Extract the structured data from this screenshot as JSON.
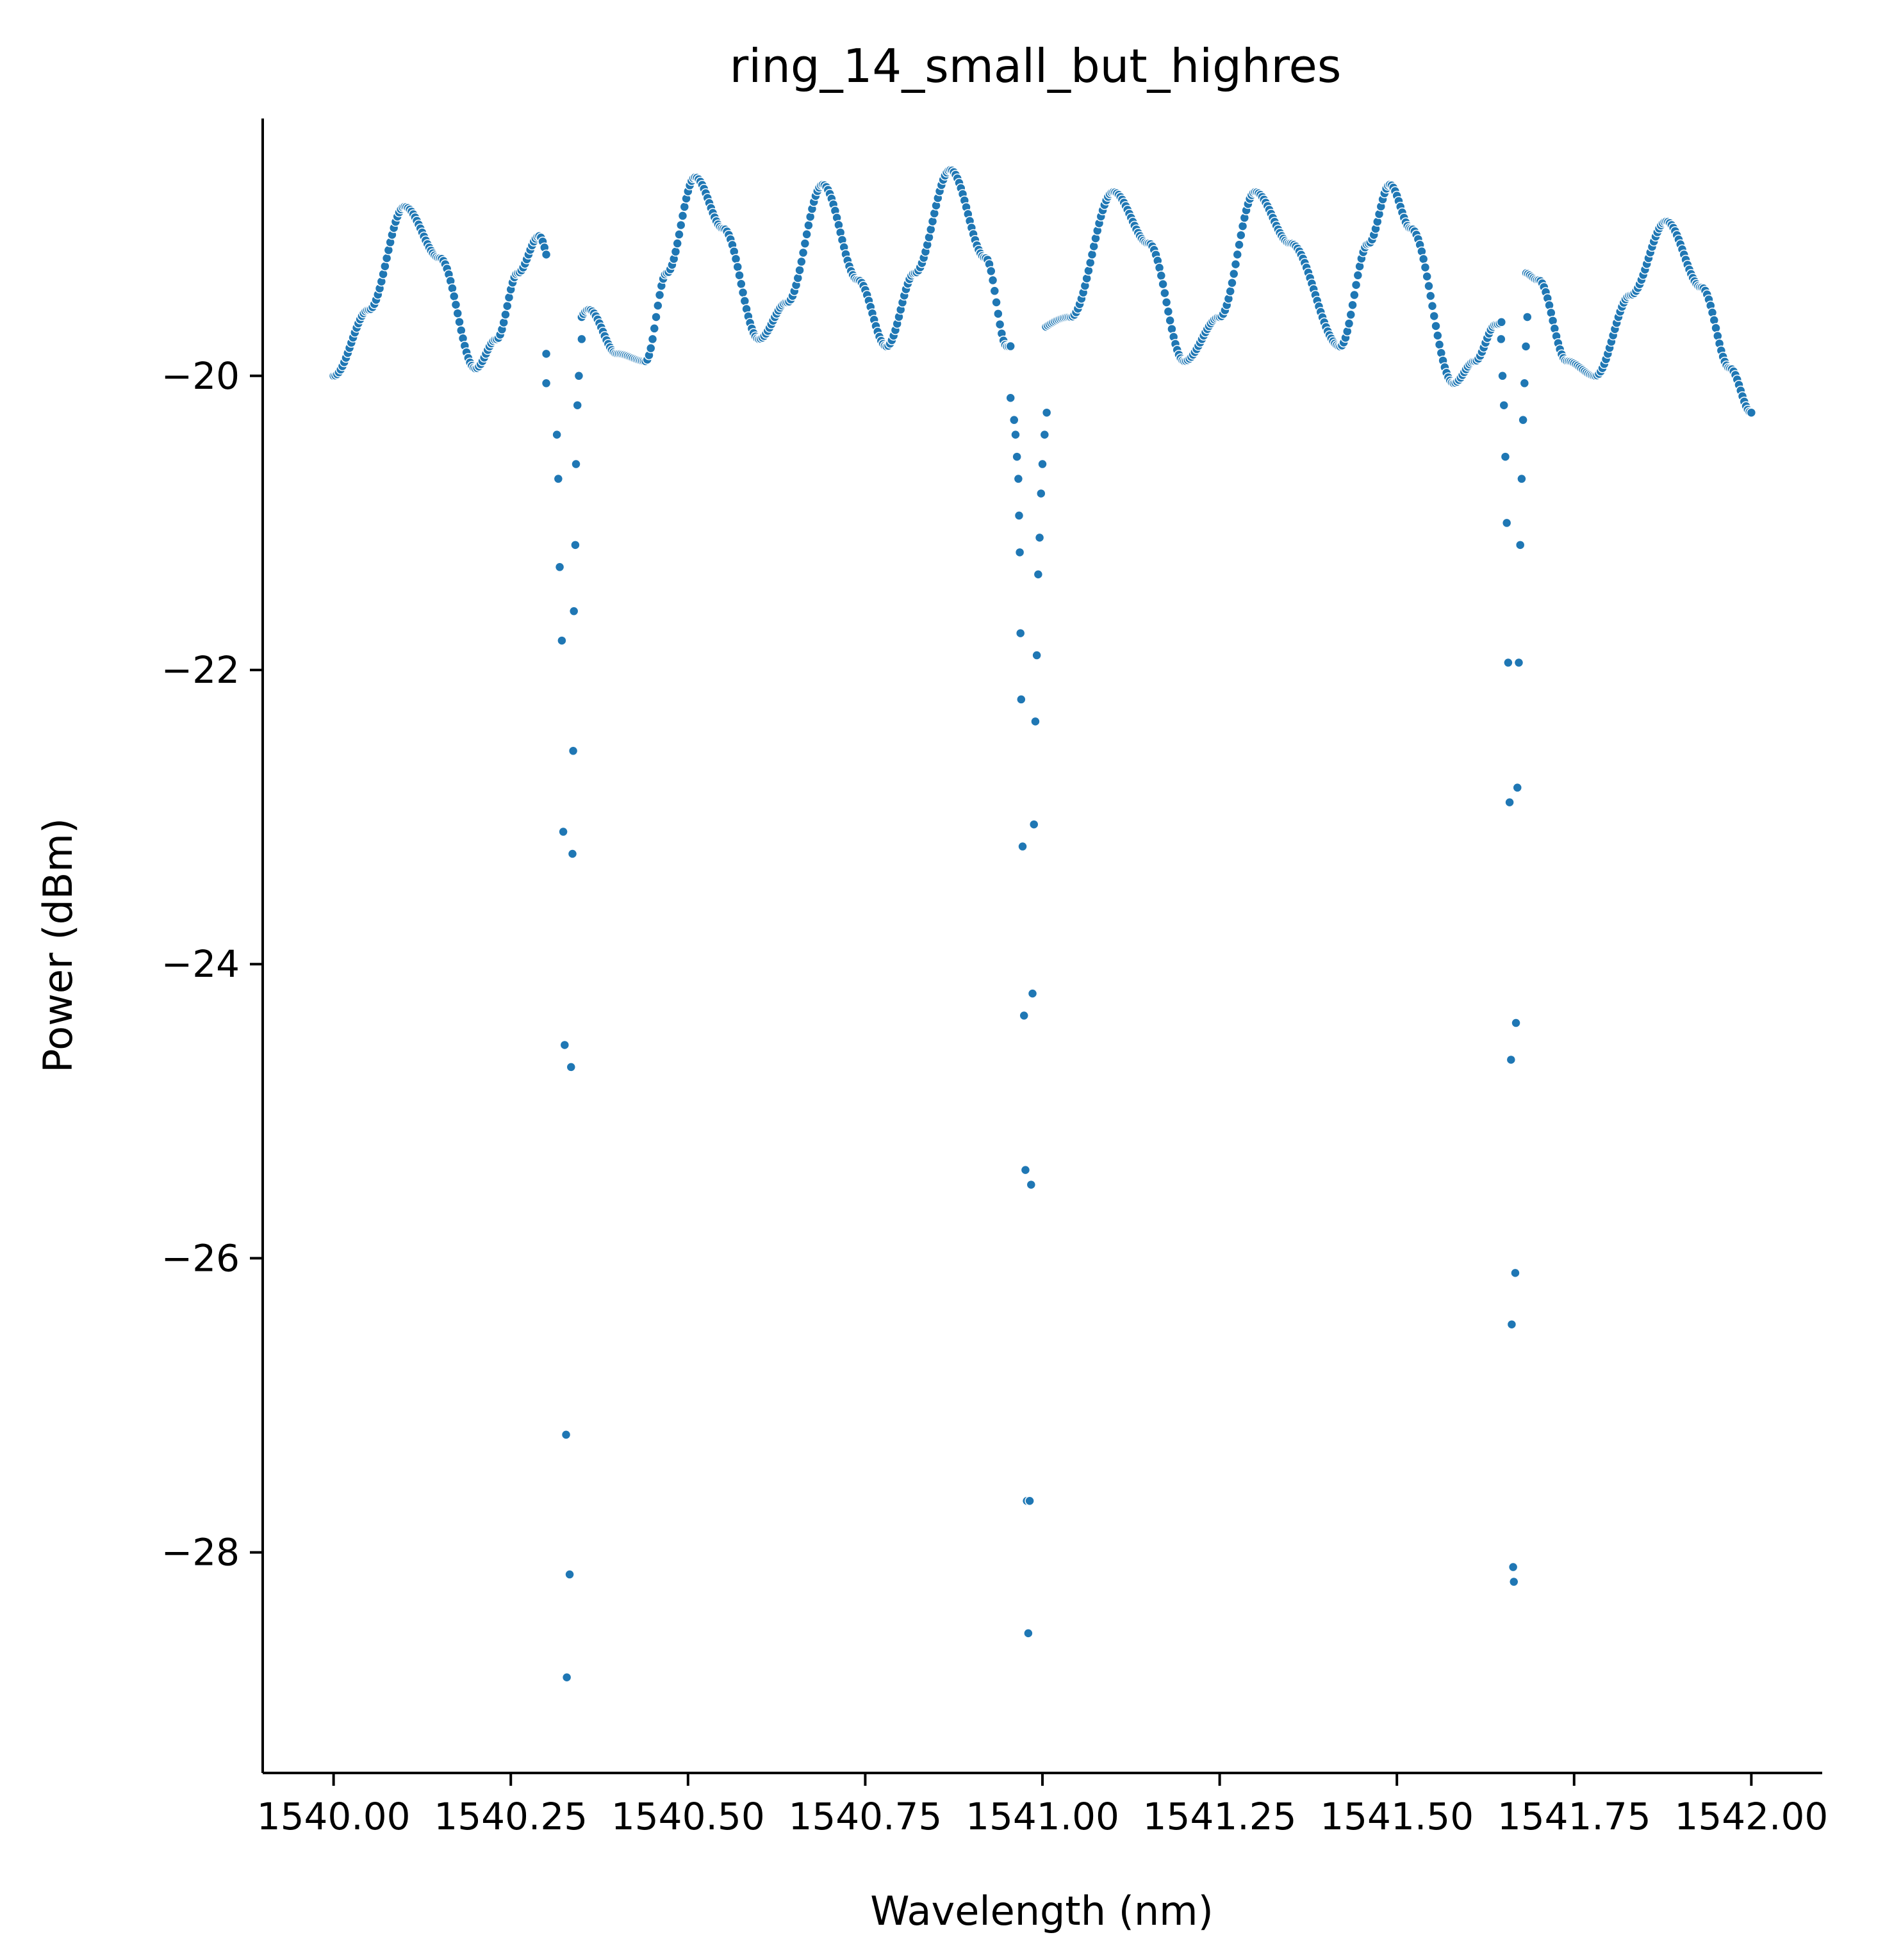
{
  "chart_data": {
    "type": "scatter",
    "title": "ring_14_small_but_highres",
    "xlabel": "Wavelength (nm)",
    "ylabel": "Power (dBm)",
    "xlim": [
      1539.9,
      1542.1
    ],
    "ylim": [
      -29.5,
      -18.25
    ],
    "x_ticks": [
      1540.0,
      1540.25,
      1540.5,
      1540.75,
      1541.0,
      1541.25,
      1541.5,
      1541.75,
      1542.0
    ],
    "x_tick_labels": [
      "1540.00",
      "1540.25",
      "1540.50",
      "1540.75",
      "1541.00",
      "1541.25",
      "1541.50",
      "1541.75",
      "1542.00"
    ],
    "y_ticks": [
      -28,
      -26,
      -24,
      -22,
      -20
    ],
    "y_tick_labels": [
      "−28",
      "−26",
      "−24",
      "−22",
      "−20"
    ],
    "grid": false,
    "legend": "none",
    "marker_color": "#1f77b4",
    "marker_edge_color": "#ffffff",
    "series": [
      {
        "baseline": {
          "x_range": [
            1540.0,
            1542.0
          ],
          "anchors": [
            [
              1540.0,
              -20.0
            ],
            [
              1540.05,
              -19.55
            ],
            [
              1540.1,
              -18.85
            ],
            [
              1540.15,
              -19.2
            ],
            [
              1540.2,
              -19.95
            ],
            [
              1540.23,
              -19.75
            ],
            [
              1540.26,
              -19.3
            ],
            [
              1540.29,
              -19.05
            ],
            [
              1540.31,
              -19.3
            ],
            [
              1540.33,
              -19.75
            ],
            [
              1540.36,
              -19.55
            ],
            [
              1540.4,
              -19.85
            ],
            [
              1540.44,
              -19.9
            ],
            [
              1540.47,
              -19.3
            ],
            [
              1540.51,
              -18.65
            ],
            [
              1540.55,
              -19.0
            ],
            [
              1540.6,
              -19.75
            ],
            [
              1540.64,
              -19.5
            ],
            [
              1540.69,
              -18.7
            ],
            [
              1540.74,
              -19.35
            ],
            [
              1540.78,
              -19.8
            ],
            [
              1540.82,
              -19.3
            ],
            [
              1540.87,
              -18.6
            ],
            [
              1540.92,
              -19.2
            ],
            [
              1540.95,
              -19.8
            ],
            [
              1541.04,
              -19.6
            ],
            [
              1541.1,
              -18.75
            ],
            [
              1541.15,
              -19.1
            ],
            [
              1541.2,
              -19.9
            ],
            [
              1541.25,
              -19.6
            ],
            [
              1541.3,
              -18.75
            ],
            [
              1541.35,
              -19.1
            ],
            [
              1541.42,
              -19.8
            ],
            [
              1541.46,
              -19.1
            ],
            [
              1541.49,
              -18.7
            ],
            [
              1541.52,
              -19.0
            ],
            [
              1541.58,
              -20.05
            ],
            [
              1541.61,
              -19.9
            ],
            [
              1541.64,
              -19.65
            ],
            [
              1541.66,
              -19.6
            ],
            [
              1541.68,
              -19.3
            ],
            [
              1541.7,
              -19.35
            ],
            [
              1541.74,
              -19.9
            ],
            [
              1541.78,
              -20.0
            ],
            [
              1541.83,
              -19.45
            ],
            [
              1541.88,
              -18.95
            ],
            [
              1541.93,
              -19.4
            ],
            [
              1541.97,
              -19.95
            ],
            [
              1542.0,
              -20.25
            ]
          ],
          "step": 0.0025
        },
        "resonance_dips": [
          {
            "points": [
              [
                1540.3,
                -19.85
              ],
              [
                1540.3,
                -20.05
              ],
              [
                1540.315,
                -20.4
              ],
              [
                1540.317,
                -20.7
              ],
              [
                1540.319,
                -21.3
              ],
              [
                1540.322,
                -21.8
              ],
              [
                1540.324,
                -23.1
              ],
              [
                1540.326,
                -24.55
              ],
              [
                1540.328,
                -27.2
              ],
              [
                1540.329,
                -28.85
              ],
              [
                1540.333,
                -28.15
              ],
              [
                1540.335,
                -24.7
              ],
              [
                1540.337,
                -23.25
              ],
              [
                1540.338,
                -22.55
              ],
              [
                1540.339,
                -21.6
              ],
              [
                1540.341,
                -21.15
              ],
              [
                1540.342,
                -20.6
              ],
              [
                1540.344,
                -20.2
              ],
              [
                1540.346,
                -20.0
              ],
              [
                1540.35,
                -19.75
              ]
            ]
          },
          {
            "points": [
              [
                1540.955,
                -20.15
              ],
              [
                1540.96,
                -20.3
              ],
              [
                1540.962,
                -20.4
              ],
              [
                1540.964,
                -20.55
              ],
              [
                1540.966,
                -20.7
              ],
              [
                1540.967,
                -20.95
              ],
              [
                1540.968,
                -21.2
              ],
              [
                1540.969,
                -21.75
              ],
              [
                1540.97,
                -22.2
              ],
              [
                1540.972,
                -23.2
              ],
              [
                1540.974,
                -24.35
              ],
              [
                1540.976,
                -25.4
              ],
              [
                1540.978,
                -27.65
              ],
              [
                1540.98,
                -28.55
              ],
              [
                1540.982,
                -27.65
              ],
              [
                1540.984,
                -25.5
              ],
              [
                1540.986,
                -24.2
              ],
              [
                1540.988,
                -23.05
              ],
              [
                1540.99,
                -22.35
              ],
              [
                1540.992,
                -21.9
              ],
              [
                1540.994,
                -21.35
              ],
              [
                1540.996,
                -21.1
              ],
              [
                1540.998,
                -20.8
              ],
              [
                1541.0,
                -20.6
              ],
              [
                1541.003,
                -20.4
              ],
              [
                1541.006,
                -20.25
              ]
            ]
          },
          {
            "points": [
              [
                1541.647,
                -19.75
              ],
              [
                1541.649,
                -20.0
              ],
              [
                1541.651,
                -20.2
              ],
              [
                1541.653,
                -20.55
              ],
              [
                1541.655,
                -21.0
              ],
              [
                1541.657,
                -21.95
              ],
              [
                1541.659,
                -22.9
              ],
              [
                1541.661,
                -24.65
              ],
              [
                1541.662,
                -26.45
              ],
              [
                1541.664,
                -28.1
              ],
              [
                1541.665,
                -28.2
              ],
              [
                1541.667,
                -26.1
              ],
              [
                1541.668,
                -24.4
              ],
              [
                1541.67,
                -22.8
              ],
              [
                1541.672,
                -21.95
              ],
              [
                1541.674,
                -21.15
              ],
              [
                1541.676,
                -20.7
              ],
              [
                1541.678,
                -20.3
              ],
              [
                1541.68,
                -20.05
              ],
              [
                1541.682,
                -19.8
              ],
              [
                1541.684,
                -19.6
              ]
            ]
          }
        ]
      }
    ]
  }
}
